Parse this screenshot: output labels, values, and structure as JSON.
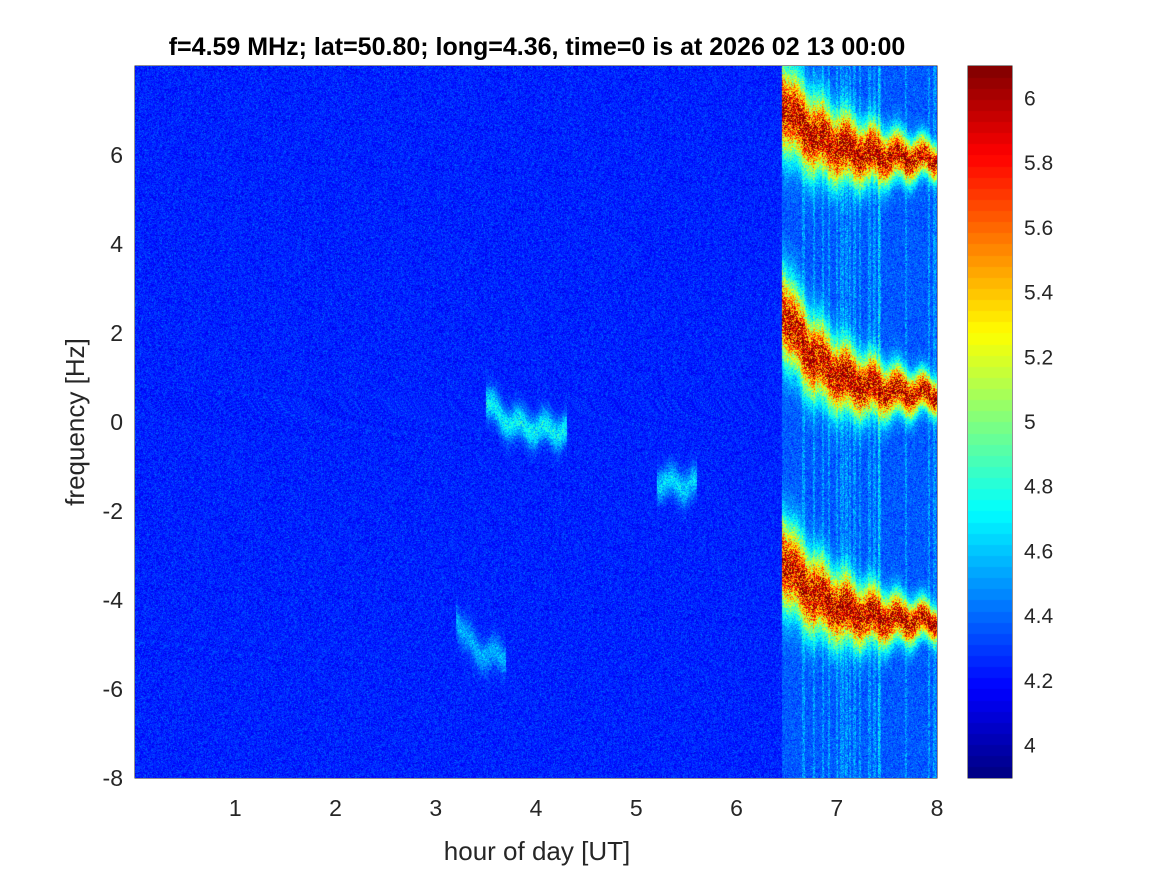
{
  "chart_data": {
    "type": "heatmap",
    "title": "f=4.59 MHz;  lat=50.80; long=4.36, time=0 is at 2026 02 13 00:00",
    "xlabel": "hour of day [UT]",
    "ylabel": "frequency [Hz]",
    "xlim": [
      0,
      8
    ],
    "ylim": [
      -8,
      8
    ],
    "xticks": [
      1,
      2,
      3,
      4,
      5,
      6,
      7,
      8
    ],
    "yticks": [
      -8,
      -6,
      -4,
      -2,
      0,
      2,
      4,
      6
    ],
    "colormap": "jet",
    "color_range": [
      3.9,
      6.1
    ],
    "colorbar_ticks": [
      4,
      4.2,
      4.4,
      4.6,
      4.8,
      5,
      5.2,
      5.4,
      5.6,
      5.8,
      6
    ],
    "background_level": 4.25,
    "features": [
      {
        "description_hour_range": [
          6.45,
          8.0
        ],
        "center_freq_start": 7.2,
        "center_freq_end": 5.9,
        "peak": 6.05
      },
      {
        "description_hour_range": [
          6.45,
          8.0
        ],
        "center_freq_start": 2.6,
        "center_freq_end": 0.6,
        "peak": 6.05
      },
      {
        "description_hour_range": [
          6.45,
          8.0
        ],
        "center_freq_start": -3.0,
        "center_freq_end": -4.5,
        "peak": 6.05
      },
      {
        "description_hour_range": [
          3.5,
          4.3
        ],
        "center_freq_start": 0.5,
        "center_freq_end": -0.2,
        "peak": 4.8
      },
      {
        "description_hour_range": [
          5.2,
          5.6
        ],
        "center_freq_start": -1.3,
        "center_freq_end": -1.4,
        "peak": 4.7
      },
      {
        "description_hour_range": [
          3.2,
          3.7
        ],
        "center_freq_start": -4.3,
        "center_freq_end": -5.3,
        "peak": 4.6
      }
    ]
  }
}
